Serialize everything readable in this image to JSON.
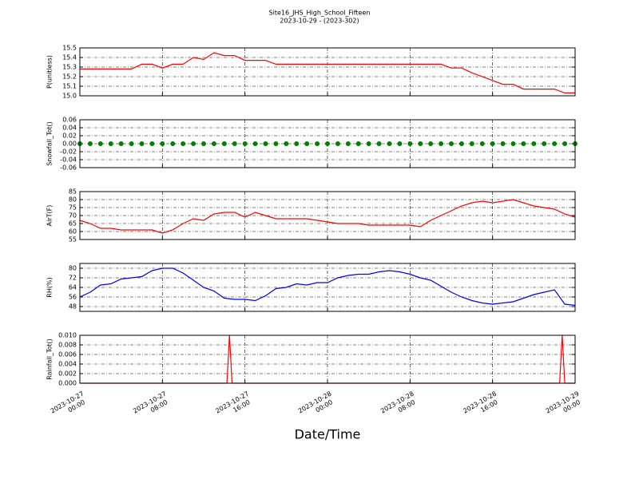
{
  "title": "Site16_JHS_High_School_Fifteen",
  "subtitle": "2023-10-29 - (2023-302)",
  "xlabel": "Date/Time",
  "xlim": [
    "2023-10-27 00:00",
    "2023-10-29 00:00"
  ],
  "xticks": [
    "2023-10-27 00:00",
    "2023-10-27 08:00",
    "2023-10-27 16:00",
    "2023-10-28 00:00",
    "2023-10-28 08:00",
    "2023-10-28 16:00",
    "2023-10-29 00:00"
  ],
  "x": [
    "2023-10-27 00:00",
    "2023-10-27 01:00",
    "2023-10-27 02:00",
    "2023-10-27 03:00",
    "2023-10-27 04:00",
    "2023-10-27 05:00",
    "2023-10-27 06:00",
    "2023-10-27 07:00",
    "2023-10-27 08:00",
    "2023-10-27 09:00",
    "2023-10-27 10:00",
    "2023-10-27 11:00",
    "2023-10-27 12:00",
    "2023-10-27 13:00",
    "2023-10-27 14:00",
    "2023-10-27 15:00",
    "2023-10-27 16:00",
    "2023-10-27 17:00",
    "2023-10-27 18:00",
    "2023-10-27 19:00",
    "2023-10-27 20:00",
    "2023-10-27 21:00",
    "2023-10-27 22:00",
    "2023-10-27 23:00",
    "2023-10-28 00:00",
    "2023-10-28 01:00",
    "2023-10-28 02:00",
    "2023-10-28 03:00",
    "2023-10-28 04:00",
    "2023-10-28 05:00",
    "2023-10-28 06:00",
    "2023-10-28 07:00",
    "2023-10-28 08:00",
    "2023-10-28 09:00",
    "2023-10-28 10:00",
    "2023-10-28 11:00",
    "2023-10-28 12:00",
    "2023-10-28 13:00",
    "2023-10-28 14:00",
    "2023-10-28 15:00",
    "2023-10-28 16:00",
    "2023-10-28 17:00",
    "2023-10-28 18:00",
    "2023-10-28 19:00",
    "2023-10-28 20:00",
    "2023-10-28 21:00",
    "2023-10-28 22:00",
    "2023-10-28 23:00",
    "2023-10-29 00:00"
  ],
  "grid": true,
  "chart_data": [
    {
      "type": "line",
      "ylabel": "P(unitless)",
      "color": "#ff0000",
      "values": [
        15.28,
        15.28,
        15.28,
        15.28,
        15.28,
        15.28,
        15.33,
        15.33,
        15.29,
        15.33,
        15.33,
        15.4,
        15.38,
        15.45,
        15.42,
        15.42,
        15.37,
        15.37,
        15.37,
        15.33,
        15.33,
        15.33,
        15.33,
        15.33,
        15.33,
        15.33,
        15.33,
        15.33,
        15.33,
        15.33,
        15.33,
        15.33,
        15.33,
        15.33,
        15.33,
        15.33,
        15.29,
        15.29,
        15.24,
        15.2,
        15.16,
        15.12,
        15.12,
        15.07,
        15.07,
        15.07,
        15.07,
        15.03,
        15.03
      ],
      "ylim": [
        15.0,
        15.5
      ],
      "yticks": [
        {
          "value": 15.0,
          "label": "15.0"
        },
        15.1,
        15.2,
        15.3,
        15.4,
        15.5
      ]
    },
    {
      "type": "scatter",
      "ylabel": "Snowfall_Tot()",
      "color": "#008000",
      "values": [
        0,
        0,
        0,
        0,
        0,
        0,
        0,
        0,
        0,
        0,
        0,
        0,
        0,
        0,
        0,
        0,
        0,
        0,
        0,
        0,
        0,
        0,
        0,
        0,
        0,
        0,
        0,
        0,
        0,
        0,
        0,
        0,
        0,
        0,
        0,
        0,
        0,
        0,
        0,
        0,
        0,
        0,
        0,
        0,
        0,
        0,
        0,
        0,
        0
      ],
      "ylim": [
        -0.06,
        0.06
      ],
      "yticks": [
        -0.06,
        -0.04,
        -0.02,
        {
          "value": 0,
          "label": "0.00"
        },
        0.02,
        0.04,
        0.06
      ]
    },
    {
      "type": "line",
      "ylabel": "AirT(F)",
      "color": "#ff0000",
      "values": [
        67,
        65,
        62,
        62,
        61,
        61,
        61,
        61,
        59,
        61,
        65,
        68,
        67,
        71,
        72,
        72,
        69,
        72,
        70,
        68,
        68,
        68,
        68,
        67,
        66,
        65,
        65,
        65,
        64,
        64,
        64,
        64,
        64,
        63,
        67,
        70,
        73,
        76,
        78,
        79,
        78,
        79,
        80,
        78,
        76,
        75,
        74,
        71,
        69
      ],
      "ylim": [
        55,
        85
      ],
      "yticks": [
        55,
        60,
        65,
        70,
        75,
        80,
        85
      ]
    },
    {
      "type": "line",
      "ylabel": "RH(%)",
      "color": "#0000ff",
      "values": [
        56,
        60,
        66,
        67,
        71,
        72,
        73,
        78,
        80,
        80,
        76,
        70,
        64,
        61,
        55,
        54,
        54,
        53,
        57,
        63,
        64,
        67,
        66,
        68,
        68,
        72,
        74,
        75,
        75,
        77,
        78,
        77,
        75,
        72,
        70,
        65,
        60,
        56,
        53,
        51,
        50,
        51,
        52,
        55,
        58,
        60,
        62,
        50,
        49
      ],
      "ylim": [
        44,
        84
      ],
      "yticks": [
        48,
        56,
        64,
        72,
        80
      ]
    },
    {
      "type": "line",
      "ylabel": "Rainfall_Tot()",
      "color": "#ff0000",
      "x": [
        "2023-10-27 00:00",
        "2023-10-27 14:15",
        "2023-10-27 14:30",
        "2023-10-27 14:45",
        "2023-10-28 22:30",
        "2023-10-28 22:45",
        "2023-10-28 23:00",
        "2023-10-29 00:00"
      ],
      "values": [
        0,
        0,
        0.01,
        0,
        0,
        0.01,
        0,
        0
      ],
      "ylim": [
        0,
        0.01
      ],
      "yticks": [
        {
          "value": 0,
          "label": "0.000"
        },
        0.002,
        0.004,
        0.006,
        0.008,
        {
          "value": 0.01,
          "label": "0.010"
        }
      ]
    }
  ]
}
